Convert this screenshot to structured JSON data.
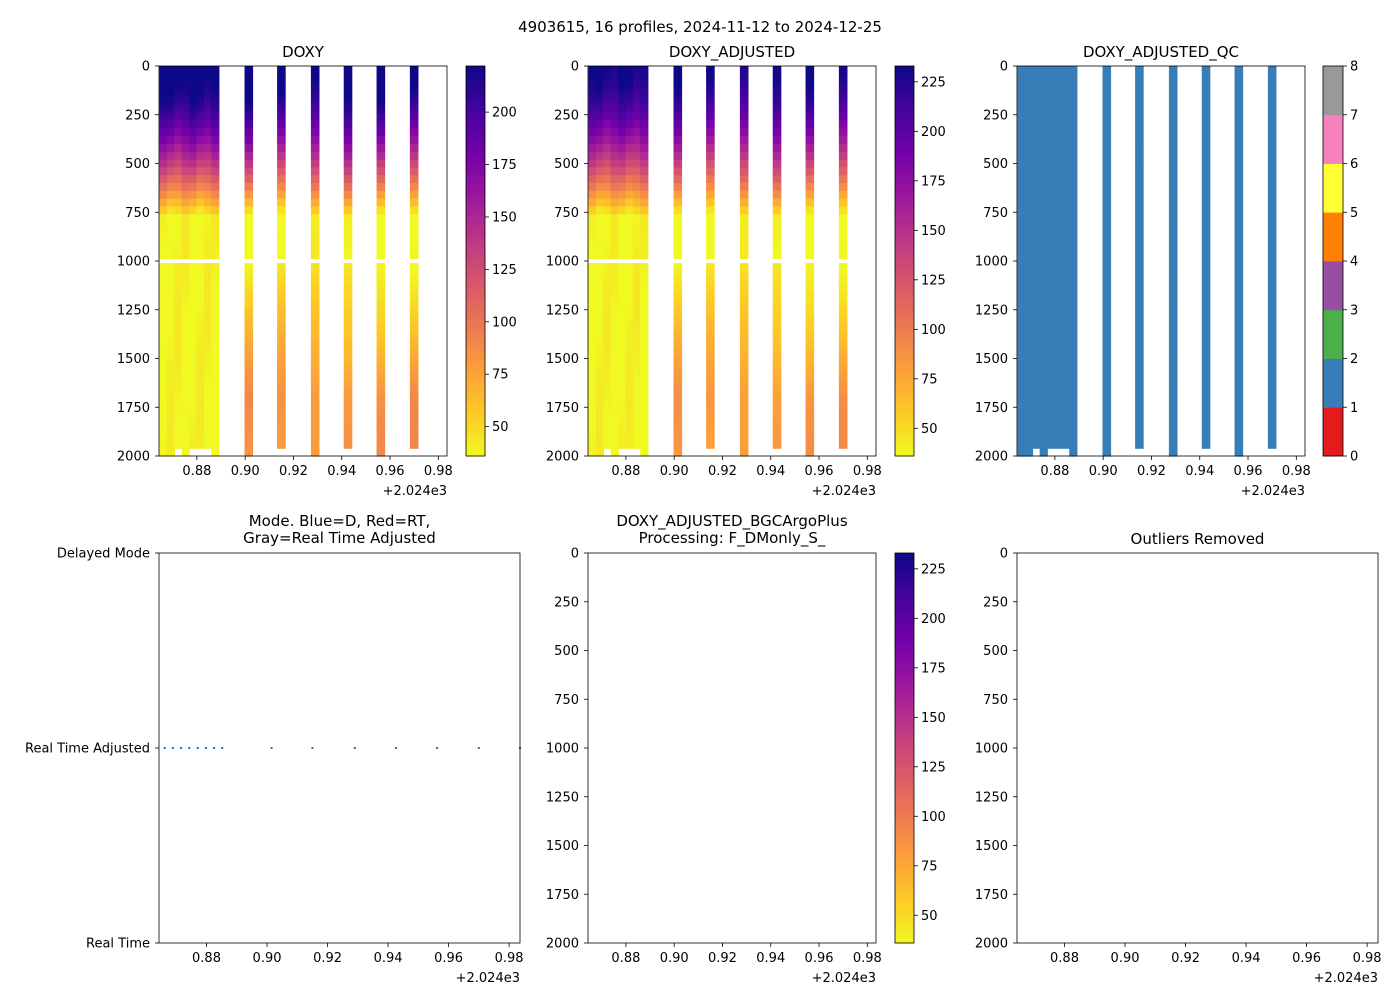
{
  "suptitle": "4903615, 16 profiles, 2024-11-12 to 2024-12-25",
  "colors": {
    "plasma": [
      "#f0f921",
      "#fdca26",
      "#fb9f3a",
      "#ed7953",
      "#d8576b",
      "#bd3786",
      "#9c179e",
      "#7201a8",
      "#46039f",
      "#0d0887"
    ],
    "qc": [
      "#e41a1c",
      "#377eb8",
      "#4daf4a",
      "#984ea3",
      "#ff7f00",
      "#ffff33",
      "#a65628",
      "#f781bf",
      "#999999"
    ],
    "mode_dots": "#1f77b4",
    "profile_bar": "#3a7db6"
  },
  "chart_data": [
    {
      "id": "doxy",
      "type": "heatmap",
      "title": "DOXY",
      "x_range": [
        0.8643,
        0.9836
      ],
      "x_ticks": [
        "0.88",
        "0.90",
        "0.92",
        "0.94",
        "0.96",
        "0.98"
      ],
      "x_offset_label": "+2.024e3",
      "y_range": [
        0,
        2000
      ],
      "y_ticks": [
        "0",
        "250",
        "500",
        "750",
        "1000",
        "1250",
        "1500",
        "1750",
        "2000"
      ],
      "colorbar": {
        "range": [
          36,
          222
        ],
        "ticks": [
          "50",
          "75",
          "100",
          "125",
          "150",
          "175",
          "200"
        ]
      },
      "profile_times": [
        0.8674,
        0.8701,
        0.8728,
        0.8755,
        0.8783,
        0.881,
        0.8837,
        0.8864,
        0.9015,
        0.915,
        0.929,
        0.9426,
        0.9562,
        0.97
      ]
    },
    {
      "id": "doxy_adj",
      "type": "heatmap",
      "title": "DOXY_ADJUSTED",
      "x_range": [
        0.8643,
        0.9836
      ],
      "x_ticks": [
        "0.88",
        "0.90",
        "0.92",
        "0.94",
        "0.96",
        "0.98"
      ],
      "x_offset_label": "+2.024e3",
      "y_range": [
        0,
        2000
      ],
      "y_ticks": [
        "0",
        "250",
        "500",
        "750",
        "1000",
        "1250",
        "1500",
        "1750",
        "2000"
      ],
      "colorbar": {
        "range": [
          36,
          233
        ],
        "ticks": [
          "50",
          "75",
          "100",
          "125",
          "150",
          "175",
          "200",
          "225"
        ]
      },
      "profile_times": [
        0.8674,
        0.8701,
        0.8728,
        0.8755,
        0.8783,
        0.881,
        0.8837,
        0.8864,
        0.9015,
        0.915,
        0.929,
        0.9426,
        0.9562,
        0.97
      ]
    },
    {
      "id": "doxy_qc",
      "type": "heatmap",
      "title": "DOXY_ADJUSTED_QC",
      "x_range": [
        0.8643,
        0.9836
      ],
      "x_ticks": [
        "0.88",
        "0.90",
        "0.92",
        "0.94",
        "0.96",
        "0.98"
      ],
      "x_offset_label": "+2.024e3",
      "y_range": [
        0,
        2000
      ],
      "y_ticks": [
        "0",
        "250",
        "500",
        "750",
        "1000",
        "1250",
        "1500",
        "1750",
        "2000"
      ],
      "qc_value": 1,
      "colorbar": {
        "range": [
          0,
          8
        ],
        "ticks": [
          "0",
          "1",
          "2",
          "3",
          "4",
          "5",
          "6",
          "7",
          "8"
        ]
      },
      "profile_times": [
        0.8674,
        0.8701,
        0.8728,
        0.8755,
        0.8783,
        0.881,
        0.8837,
        0.8864,
        0.9015,
        0.915,
        0.929,
        0.9426,
        0.9562,
        0.97
      ]
    },
    {
      "id": "mode",
      "type": "scatter",
      "title_lines": [
        "Mode. Blue=D, Red=RT,",
        "Gray=Real Time Adjusted"
      ],
      "x_range": [
        0.8643,
        0.9836
      ],
      "x_ticks": [
        "0.88",
        "0.90",
        "0.92",
        "0.94",
        "0.96",
        "0.98"
      ],
      "x_offset_label": "+2.024e3",
      "y_categories": [
        "Real Time",
        "Real Time Adjusted",
        "Delayed Mode"
      ],
      "points_x": [
        0.8662,
        0.8689,
        0.8716,
        0.8743,
        0.8771,
        0.8798,
        0.8825,
        0.8852,
        0.9015,
        0.915,
        0.929,
        0.9426,
        0.9562,
        0.97,
        0.9836
      ],
      "points_y": "Real Time Adjusted"
    },
    {
      "id": "bgc",
      "type": "heatmap",
      "title_lines": [
        "DOXY_ADJUSTED_BGCArgoPlus",
        "Processing: F_DMonly_S_"
      ],
      "x_range": [
        0.8643,
        0.9836
      ],
      "x_ticks": [
        "0.88",
        "0.90",
        "0.92",
        "0.94",
        "0.96",
        "0.98"
      ],
      "x_offset_label": "+2.024e3",
      "y_range": [
        0,
        2000
      ],
      "y_ticks": [
        "0",
        "250",
        "500",
        "750",
        "1000",
        "1250",
        "1500",
        "1750",
        "2000"
      ],
      "colorbar": {
        "range": [
          36,
          233
        ],
        "ticks": [
          "50",
          "75",
          "100",
          "125",
          "150",
          "175",
          "200",
          "225"
        ]
      },
      "profile_times": []
    },
    {
      "id": "outliers",
      "type": "scatter",
      "title": "Outliers Removed",
      "x_range": [
        0.8643,
        0.9836
      ],
      "x_ticks": [
        "0.88",
        "0.90",
        "0.92",
        "0.94",
        "0.96",
        "0.98"
      ],
      "x_offset_label": "+2.024e3",
      "y_range": [
        0,
        2000
      ],
      "y_ticks": [
        "0",
        "250",
        "500",
        "750",
        "1000",
        "1250",
        "1500",
        "1750",
        "2000"
      ],
      "points_x": []
    }
  ]
}
